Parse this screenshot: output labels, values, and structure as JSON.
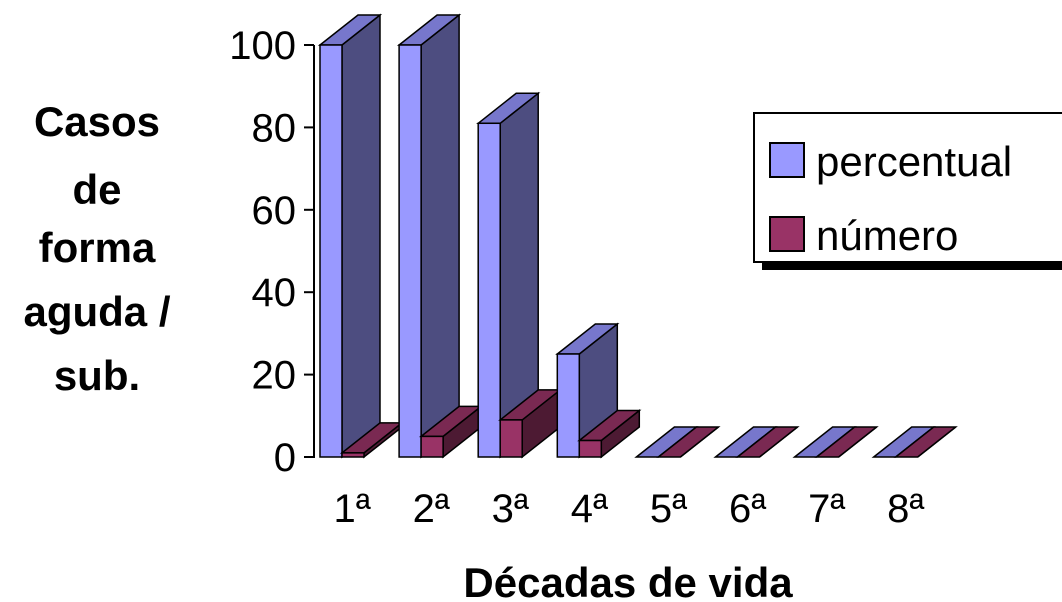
{
  "chart_data": {
    "type": "bar",
    "three_d": true,
    "categories": [
      "1ª",
      "2ª",
      "3ª",
      "4ª",
      "5ª",
      "6ª",
      "7ª",
      "8ª"
    ],
    "series": [
      {
        "name": "percentual",
        "values": [
          100,
          100,
          81,
          25,
          0,
          0,
          0,
          0
        ],
        "color": "#9999ff"
      },
      {
        "name": "número",
        "values": [
          1,
          5,
          9,
          4,
          0,
          0,
          0,
          0
        ],
        "color": "#993366"
      }
    ],
    "xlabel": "Décadas de vida",
    "ylabel_lines": [
      "Casos",
      "de",
      "forma",
      "aguda /",
      "sub."
    ],
    "ylim": [
      0,
      100
    ],
    "yticks": [
      "0",
      "20",
      "40",
      "60",
      "80",
      "100"
    ],
    "legend_position": "right",
    "grid": false
  }
}
